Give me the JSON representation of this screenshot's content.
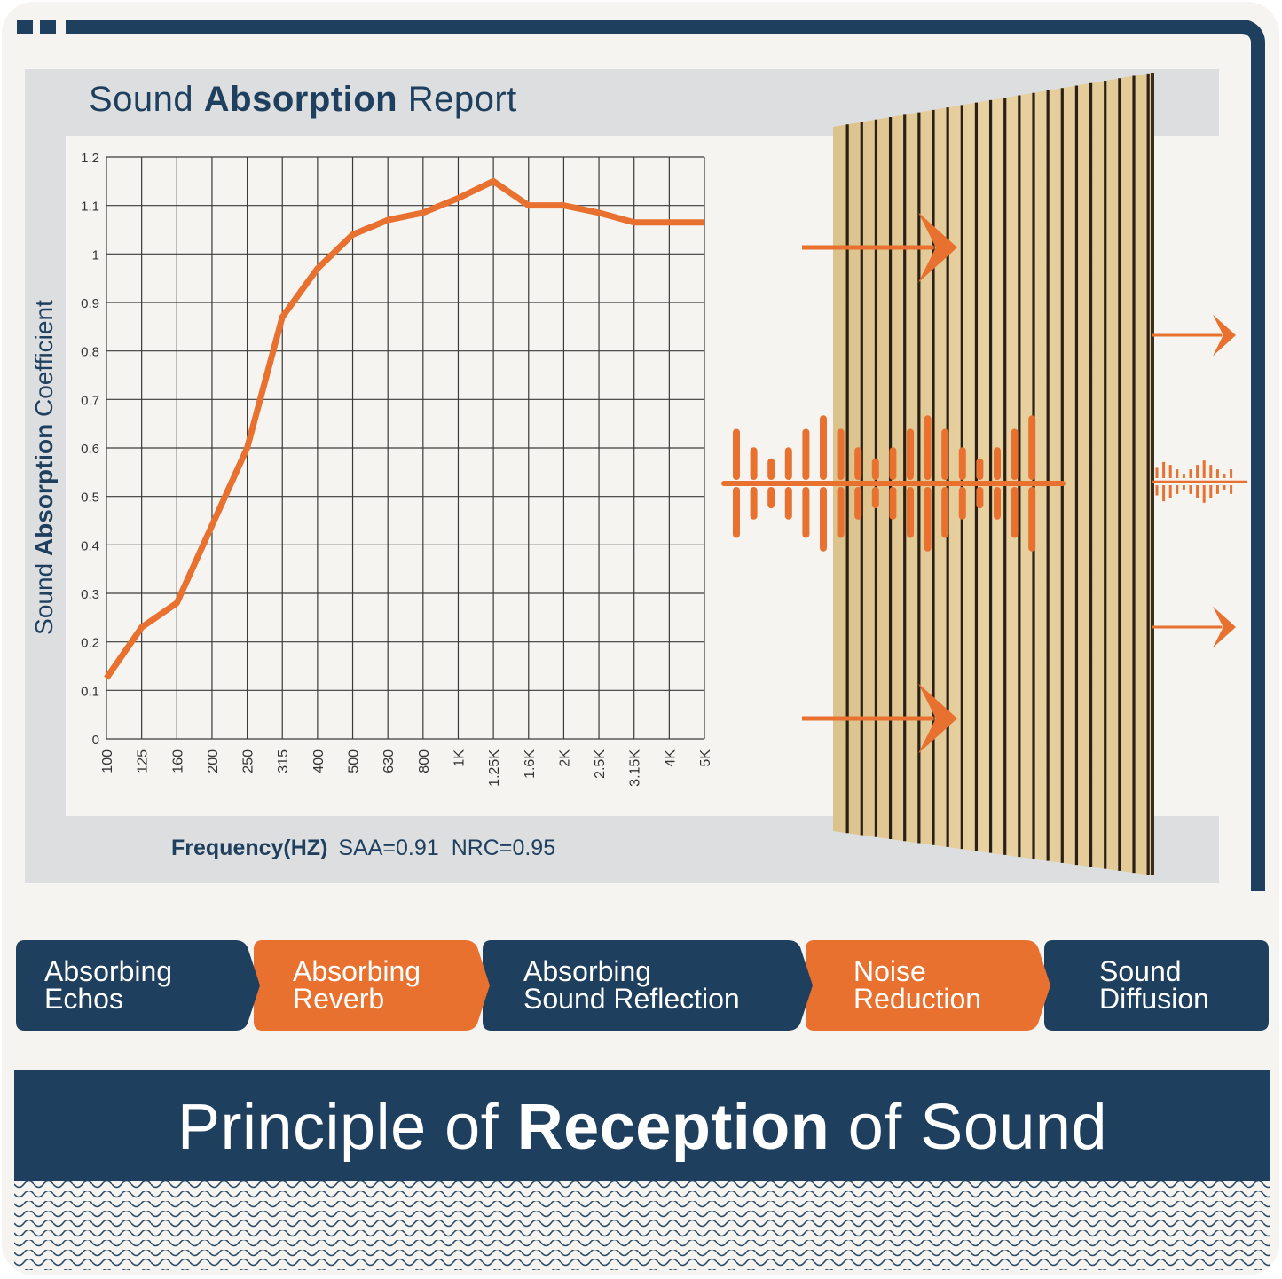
{
  "colors": {
    "navy": "#1f3f5e",
    "orange": "#e8712f",
    "background": "#f5f4f1",
    "report_gray": "#dcdedf",
    "wood": "#e3c996",
    "slat_gap": "#2a2016"
  },
  "report": {
    "title_prefix": "Sound ",
    "title_bold": "Absorption",
    "title_suffix": " Report",
    "ylabel_prefix": "Sound ",
    "ylabel_bold": "Absorption",
    "ylabel_suffix": " Coefficient",
    "caption_bold": "Frequency(HZ)",
    "saa": "SAA=0.91",
    "nrc": "NRC=0.95"
  },
  "chart_data": {
    "type": "line",
    "title": "Sound Absorption Report",
    "xlabel": "Frequency(HZ)",
    "ylabel": "Sound Absorption Coefficient",
    "categories": [
      "100",
      "125",
      "160",
      "200",
      "250",
      "315",
      "400",
      "500",
      "630",
      "800",
      "1K",
      "1.25K",
      "1.6K",
      "2K",
      "2.5K",
      "3.15K",
      "4K",
      "5K"
    ],
    "series": [
      {
        "name": "Absorption coefficient",
        "color": "#e8712f",
        "values": [
          0.125,
          0.23,
          0.28,
          0.44,
          0.6,
          0.87,
          0.97,
          1.04,
          1.07,
          1.085,
          1.115,
          1.15,
          1.1,
          1.1,
          1.085,
          1.065,
          1.065,
          1.065
        ]
      }
    ],
    "yticks": [
      "0",
      "0.1",
      "0.2",
      "0.3",
      "0.4",
      "0.5",
      "0.6",
      "0.7",
      "0.8",
      "0.9",
      "1",
      "1.1",
      "1.2"
    ],
    "ylim": [
      0,
      1.2
    ],
    "grid": true,
    "annotations": [
      "SAA=0.91",
      "NRC=0.95"
    ]
  },
  "features": [
    {
      "label": "Absorbing\nEchos",
      "color": "navy"
    },
    {
      "label": "Absorbing\nReverb",
      "color": "orange"
    },
    {
      "label": "Absorbing\nSound Reflection",
      "color": "navy"
    },
    {
      "label": "Noise\nReduction",
      "color": "orange"
    },
    {
      "label": "Sound\nDiffusion",
      "color": "navy"
    }
  ],
  "banner": {
    "prefix": "Principle of ",
    "bold": "Reception",
    "suffix": " of Sound"
  },
  "illustration": {
    "incoming_arrows": 2,
    "outgoing_arrows": 2,
    "incoming_wave_bars": [
      0.55,
      0.32,
      0.18,
      0.32,
      0.55,
      0.72,
      0.55,
      0.32,
      0.18,
      0.32,
      0.55,
      0.72,
      0.55,
      0.32,
      0.18,
      0.32,
      0.55,
      0.72
    ],
    "outgoing_wave_bars": [
      0.35,
      0.55,
      0.45,
      0.3,
      0.15,
      0.3,
      0.45,
      0.6,
      0.45,
      0.3,
      0.15,
      0.3
    ]
  }
}
